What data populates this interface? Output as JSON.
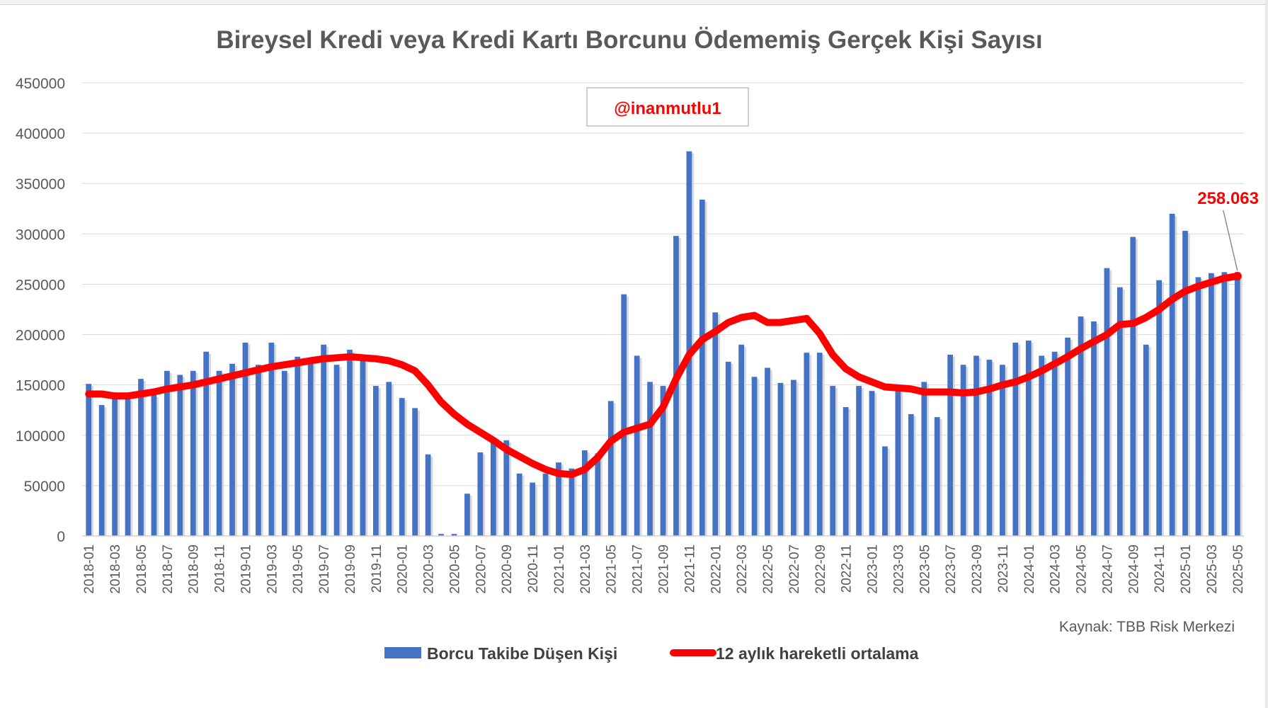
{
  "chart_data": {
    "type": "bar",
    "title": "Bireysel Kredi veya Kredi Kartı Borcunu Ödememiş Gerçek Kişi Sayısı",
    "watermark": "@inanmutlu1",
    "source": "Kaynak: TBB Risk Merkezi",
    "last_value_label": "258.063",
    "ylim": [
      0,
      450000
    ],
    "yticks": [
      "0",
      "50000",
      "100000",
      "150000",
      "200000",
      "250000",
      "300000",
      "350000",
      "400000",
      "450000"
    ],
    "grid": true,
    "legend_position": "bottom",
    "colors": {
      "bar": "#4472C4",
      "line": "#FF0000",
      "label": "#FF0000",
      "grid": "#D9D9D9",
      "text": "#595959"
    },
    "categories": [
      "2018-01",
      "2018-02",
      "2018-03",
      "2018-04",
      "2018-05",
      "2018-06",
      "2018-07",
      "2018-08",
      "2018-09",
      "2018-10",
      "2018-11",
      "2018-12",
      "2019-01",
      "2019-02",
      "2019-03",
      "2019-04",
      "2019-05",
      "2019-06",
      "2019-07",
      "2019-08",
      "2019-09",
      "2019-10",
      "2019-11",
      "2019-12",
      "2020-01",
      "2020-02",
      "2020-03",
      "2020-04",
      "2020-05",
      "2020-06",
      "2020-07",
      "2020-08",
      "2020-09",
      "2020-10",
      "2020-11",
      "2020-12",
      "2021-01",
      "2021-02",
      "2021-03",
      "2021-04",
      "2021-05",
      "2021-06",
      "2021-07",
      "2021-08",
      "2021-09",
      "2021-10",
      "2021-11",
      "2021-12",
      "2022-01",
      "2022-02",
      "2022-03",
      "2022-04",
      "2022-05",
      "2022-06",
      "2022-07",
      "2022-08",
      "2022-09",
      "2022-10",
      "2022-11",
      "2022-12",
      "2023-01",
      "2023-02",
      "2023-03",
      "2023-04",
      "2023-05",
      "2023-06",
      "2023-07",
      "2023-08",
      "2023-09",
      "2023-10",
      "2023-11",
      "2023-12",
      "2024-01",
      "2024-02",
      "2024-03",
      "2024-04",
      "2024-05",
      "2024-06",
      "2024-07",
      "2024-08",
      "2024-09",
      "2024-10",
      "2024-11",
      "2024-12",
      "2025-01",
      "2025-02",
      "2025-03",
      "2025-04",
      "2025-05"
    ],
    "series": [
      {
        "name": "Borcu Takibe Düşen Kişi",
        "type": "bar",
        "values": [
          151000,
          130000,
          138000,
          137000,
          156000,
          140000,
          164000,
          160000,
          164000,
          183000,
          164000,
          171000,
          192000,
          170000,
          192000,
          164000,
          178000,
          174000,
          190000,
          170000,
          185000,
          180000,
          149000,
          153000,
          137000,
          127000,
          81000,
          2000,
          2000,
          42000,
          83000,
          97000,
          95000,
          62000,
          53000,
          62000,
          73000,
          67000,
          85000,
          82000,
          134000,
          240000,
          179000,
          153000,
          149000,
          298000,
          382000,
          334000,
          222000,
          173000,
          190000,
          158000,
          167000,
          152000,
          155000,
          182000,
          182000,
          149000,
          128000,
          149000,
          144000,
          89000,
          146000,
          121000,
          153000,
          118000,
          180000,
          170000,
          179000,
          175000,
          170000,
          192000,
          194000,
          179000,
          183000,
          197000,
          218000,
          213000,
          266000,
          247000,
          297000,
          190000,
          254000,
          320000,
          303000,
          257000,
          261000,
          262000,
          262000
        ]
      },
      {
        "name": "12 aylık hareketli ortalama",
        "type": "line",
        "values": [
          141000,
          141000,
          139000,
          139000,
          141000,
          143000,
          146000,
          148000,
          150000,
          153000,
          156000,
          159000,
          162000,
          165000,
          168000,
          170000,
          172000,
          174000,
          176000,
          177000,
          178000,
          177000,
          176000,
          174000,
          170000,
          164000,
          150000,
          133000,
          121000,
          111000,
          103000,
          95000,
          86000,
          79000,
          72000,
          66000,
          62000,
          61000,
          66000,
          78000,
          94000,
          103000,
          107000,
          111000,
          128000,
          156000,
          180000,
          195000,
          203000,
          212000,
          217000,
          219000,
          212000,
          212000,
          214000,
          216000,
          201000,
          180000,
          166000,
          158000,
          153000,
          148000,
          147000,
          146000,
          143000,
          143000,
          143000,
          142000,
          143000,
          146000,
          150000,
          153000,
          158000,
          164000,
          171000,
          178000,
          186000,
          193000,
          200000,
          210000,
          211000,
          217000,
          225000,
          235000,
          243000,
          248000,
          252000,
          256000,
          258000
        ]
      }
    ]
  }
}
